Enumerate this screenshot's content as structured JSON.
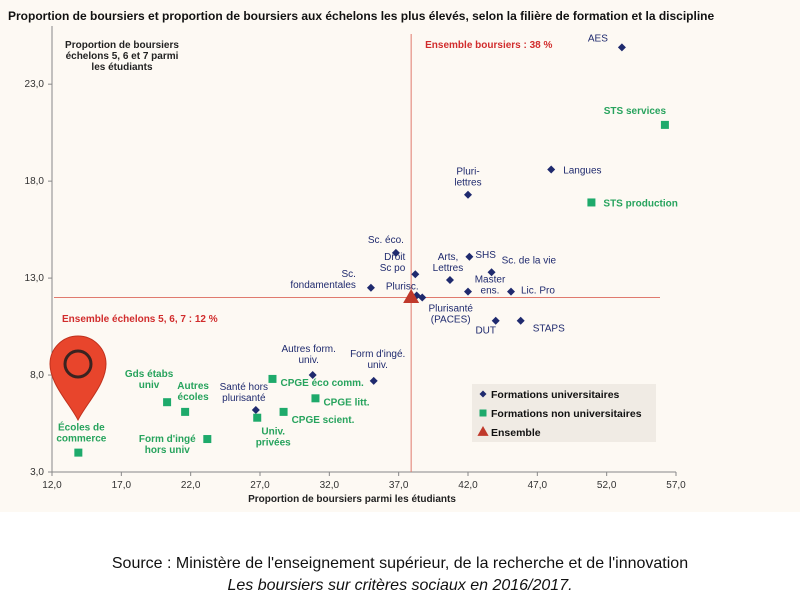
{
  "chart_data": {
    "type": "scatter",
    "title": "Proportion de boursiers et proportion de boursiers aux échelons les plus élevés, selon la filière de formation et la discipline",
    "xlabel": "Proportion de boursiers  parmi les étudiants",
    "ylabel_lines": [
      "Proportion de boursiers",
      "échelons 5, 6 et 7 parmi",
      "les étudiants"
    ],
    "xlim": [
      12.0,
      57.0
    ],
    "ylim": [
      3.0,
      26.0
    ],
    "x_ticks": [
      {
        "v": 12.0,
        "label": "12,0"
      },
      {
        "v": 17.0,
        "label": "17,0"
      },
      {
        "v": 22.0,
        "label": "22,0"
      },
      {
        "v": 27.0,
        "label": "27,0"
      },
      {
        "v": 32.0,
        "label": "32,0"
      },
      {
        "v": 37.0,
        "label": "37,0"
      },
      {
        "v": 42.0,
        "label": "42,0"
      },
      {
        "v": 47.0,
        "label": "47,0"
      },
      {
        "v": 52.0,
        "label": "52,0"
      },
      {
        "v": 57.0,
        "label": "57,0"
      }
    ],
    "y_ticks": [
      {
        "v": 3.0,
        "label": "3,0"
      },
      {
        "v": 8.0,
        "label": "8,0"
      },
      {
        "v": 13.0,
        "label": "13,0"
      },
      {
        "v": 18.0,
        "label": "18,0"
      },
      {
        "v": 23.0,
        "label": "23,0"
      }
    ],
    "reference_lines": {
      "vertical": {
        "x": 37.9,
        "label": "Ensemble boursiers : 38 %"
      },
      "horizontal": {
        "y": 12.0,
        "label": "Ensemble échelons 5, 6, 7 : 12 %"
      }
    },
    "series": [
      {
        "name": "Formations universitaires",
        "marker": "diamond",
        "color": "#1f2a6e",
        "label_color": "#1f2a6e",
        "points": [
          {
            "label": "AES",
            "x": 53.1,
            "y": 24.9
          },
          {
            "label": "Langues",
            "x": 48.0,
            "y": 18.6
          },
          {
            "label": "Pluri-\nlettres",
            "x": 42.0,
            "y": 17.3
          },
          {
            "label": "Sc. éco.",
            "x": 36.8,
            "y": 14.3
          },
          {
            "label": "SHS",
            "x": 42.1,
            "y": 14.1
          },
          {
            "label": "Sc. de la vie",
            "x": 43.7,
            "y": 13.3
          },
          {
            "label": "Arts,\nLettres",
            "x": 40.7,
            "y": 12.9
          },
          {
            "label": "Droit\nSc po",
            "x": 38.2,
            "y": 13.2
          },
          {
            "label": "Plurisc.",
            "x": 38.7,
            "y": 12.0
          },
          {
            "label": "Sc.\nfondamentales",
            "x": 35.0,
            "y": 12.5
          },
          {
            "label": "Master\nens.",
            "x": 42.0,
            "y": 12.3
          },
          {
            "label": "Lic. Pro",
            "x": 45.1,
            "y": 12.3
          },
          {
            "label": "DUT",
            "x": 44.0,
            "y": 10.8
          },
          {
            "label": "STAPS",
            "x": 45.8,
            "y": 10.8
          },
          {
            "label": "Autres form.\nuniv.",
            "x": 30.8,
            "y": 8.0
          },
          {
            "label": "Form d'ingé.\nuniv.",
            "x": 35.2,
            "y": 7.7
          },
          {
            "label": "Santé hors\nplurisanté",
            "x": 26.7,
            "y": 6.2
          },
          {
            "label": "Plurisanté\n(PACES)",
            "x": 38.3,
            "y": 12.1
          }
        ]
      },
      {
        "name": "Formations non universitaires",
        "marker": "square",
        "color": "#1eaa6b",
        "label_color": "#27a35d",
        "points": [
          {
            "label": "STS services",
            "x": 56.2,
            "y": 20.9
          },
          {
            "label": "STS production",
            "x": 50.9,
            "y": 16.9
          },
          {
            "label": "Gds étabs\nuniv",
            "x": 20.3,
            "y": 6.6
          },
          {
            "label": "Autres\nécoles",
            "x": 21.6,
            "y": 6.1
          },
          {
            "label": "CPGE éco comm.",
            "x": 27.9,
            "y": 7.8
          },
          {
            "label": "CPGE litt.",
            "x": 31.0,
            "y": 6.8
          },
          {
            "label": "CPGE scient.",
            "x": 28.7,
            "y": 6.1
          },
          {
            "label": "Univ.\nprivées",
            "x": 26.8,
            "y": 5.8
          },
          {
            "label": "Form d'ingé\nhors univ",
            "x": 23.2,
            "y": 4.7
          },
          {
            "label": "Écoles de\ncommerce",
            "x": 13.9,
            "y": 4.0
          }
        ]
      },
      {
        "name": "Ensemble",
        "marker": "triangle",
        "color": "#c0392b",
        "label_color": "#c0392b",
        "points": [
          {
            "label": "",
            "x": 37.9,
            "y": 12.0
          }
        ]
      }
    ],
    "legend": {
      "position": "bottom-right",
      "items": [
        {
          "label": "Formations universitaires",
          "marker": "diamond",
          "color": "#1f2a6e"
        },
        {
          "label": "Formations non universitaires",
          "marker": "square",
          "color": "#1eaa6b"
        },
        {
          "label": "Ensemble",
          "marker": "triangle",
          "color": "#c0392b"
        }
      ]
    },
    "highlight_icon": "location-pin-icon",
    "highlight_color": "#e8452c",
    "background_color": "#fdf9f3",
    "reference_color": "#e07a6e"
  },
  "source": {
    "line1": "Source : Ministère de l'enseignement supérieur, de la recherche et de l'innovation",
    "line2": "Les boursiers sur critères sociaux en 2016/2017."
  }
}
